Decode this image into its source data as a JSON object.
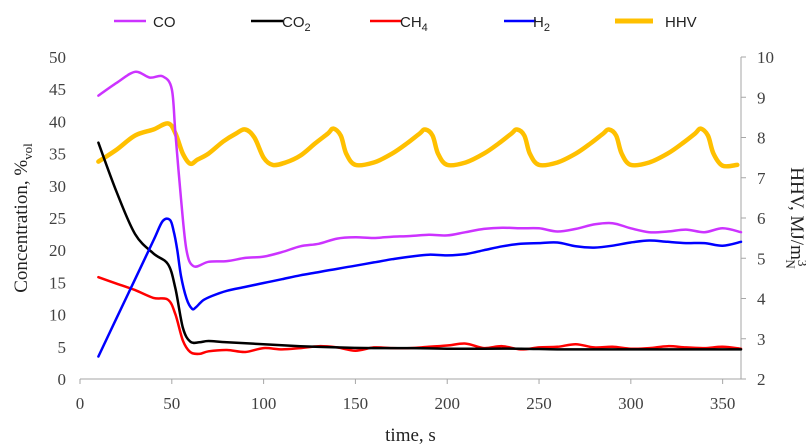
{
  "chart_data": {
    "type": "line",
    "xlabel": "time, s",
    "ylabel_left": {
      "base": "Concentration, %",
      "sub": "vol"
    },
    "ylabel_right": {
      "base": "HHV, MJ/m",
      "sup": "3",
      "sub": "N"
    },
    "xlim": [
      0,
      360
    ],
    "ylim_left": [
      0,
      50
    ],
    "ylim_right": [
      2,
      10
    ],
    "xticks": [
      "0",
      "50",
      "100",
      "150",
      "200",
      "250",
      "300",
      "350"
    ],
    "yticks_left": [
      "0",
      "5",
      "10",
      "15",
      "20",
      "25",
      "30",
      "35",
      "40",
      "45",
      "50"
    ],
    "yticks_right": [
      "2",
      "3",
      "4",
      "5",
      "6",
      "7",
      "8",
      "9",
      "10"
    ],
    "grid": false,
    "legend_position": "top",
    "series": [
      {
        "name": "CO",
        "sub": "",
        "color": "#cc33ff",
        "axis": "left",
        "x": [
          10,
          20,
          30,
          38,
          45,
          50,
          52,
          55,
          58,
          62,
          70,
          80,
          90,
          100,
          110,
          120,
          130,
          140,
          150,
          160,
          170,
          180,
          190,
          200,
          210,
          220,
          230,
          240,
          250,
          260,
          270,
          280,
          290,
          300,
          310,
          320,
          330,
          340,
          350,
          360
        ],
        "y": [
          44,
          46,
          47.7,
          46.8,
          47,
          45,
          38,
          28,
          20,
          17.5,
          18.2,
          18.3,
          18.8,
          19,
          19.7,
          20.6,
          21,
          21.8,
          22,
          21.9,
          22.1,
          22.2,
          22.4,
          22.3,
          22.8,
          23.3,
          23.5,
          23.4,
          23.4,
          22.9,
          23.3,
          24,
          24.2,
          23.4,
          22.8,
          22.9,
          23.2,
          22.8,
          23.4,
          22.8
        ]
      },
      {
        "name": "CO",
        "sub": "2",
        "color": "#000000",
        "axis": "left",
        "x": [
          10,
          20,
          30,
          40,
          48,
          52,
          56,
          60,
          65,
          70,
          80,
          100,
          120,
          140,
          160,
          180,
          200,
          220,
          240,
          260,
          280,
          300,
          320,
          340,
          360
        ],
        "y": [
          36.7,
          29,
          22.5,
          19.5,
          17.8,
          14,
          8,
          5.8,
          5.7,
          5.9,
          5.7,
          5.4,
          5.1,
          4.9,
          4.8,
          4.8,
          4.7,
          4.7,
          4.7,
          4.6,
          4.6,
          4.6,
          4.6,
          4.6,
          4.6
        ]
      },
      {
        "name": "CH",
        "sub": "4",
        "color": "#ff0000",
        "axis": "left",
        "x": [
          10,
          20,
          30,
          40,
          48,
          52,
          56,
          60,
          65,
          70,
          80,
          90,
          100,
          110,
          120,
          130,
          140,
          150,
          160,
          170,
          180,
          190,
          200,
          210,
          220,
          230,
          240,
          250,
          260,
          270,
          280,
          290,
          300,
          310,
          320,
          330,
          340,
          350,
          360
        ],
        "y": [
          15.8,
          14.8,
          13.8,
          12.6,
          12.3,
          10,
          6,
          4.2,
          3.9,
          4.3,
          4.5,
          4.2,
          4.8,
          4.6,
          4.8,
          5.1,
          4.9,
          4.4,
          4.9,
          4.8,
          4.8,
          5,
          5.2,
          5.5,
          4.8,
          5.1,
          4.6,
          4.9,
          5,
          5.4,
          4.9,
          5,
          4.7,
          4.8,
          5.1,
          4.9,
          4.8,
          5,
          4.7
        ]
      },
      {
        "name": "H",
        "sub": "2",
        "color": "#0000ff",
        "axis": "left",
        "x": [
          10,
          20,
          30,
          40,
          45,
          49,
          51,
          53,
          55,
          58,
          61,
          63,
          67,
          72,
          80,
          90,
          100,
          110,
          120,
          130,
          140,
          150,
          160,
          170,
          180,
          190,
          200,
          210,
          220,
          230,
          240,
          250,
          260,
          270,
          280,
          290,
          300,
          310,
          320,
          330,
          340,
          350,
          360
        ],
        "y": [
          3.5,
          9.5,
          15.5,
          21.5,
          24.5,
          24.7,
          23,
          20,
          16,
          12.5,
          10.9,
          11.1,
          12.2,
          12.9,
          13.7,
          14.3,
          14.9,
          15.5,
          16.1,
          16.6,
          17.1,
          17.6,
          18.1,
          18.6,
          19,
          19.3,
          19.2,
          19.4,
          20,
          20.6,
          21,
          21.1,
          21.2,
          20.6,
          20.4,
          20.7,
          21.2,
          21.5,
          21.3,
          21.1,
          21.1,
          20.7,
          21.3
        ]
      },
      {
        "name": "HHV",
        "sub": "",
        "color": "#ffc000",
        "axis": "right",
        "x": [
          10,
          20,
          30,
          40,
          48,
          52,
          56,
          60,
          64,
          70,
          78,
          85,
          90,
          95,
          100,
          105,
          112,
          120,
          128,
          135,
          138,
          142,
          145,
          150,
          160,
          170,
          178,
          185,
          188,
          192,
          195,
          200,
          210,
          220,
          228,
          235,
          238,
          242,
          245,
          250,
          260,
          270,
          278,
          285,
          288,
          292,
          295,
          300,
          310,
          320,
          328,
          335,
          338,
          342,
          345,
          350,
          358
        ],
        "y": [
          7.4,
          7.7,
          8.05,
          8.2,
          8.35,
          8.1,
          7.6,
          7.35,
          7.45,
          7.6,
          7.9,
          8.1,
          8.2,
          8.0,
          7.5,
          7.32,
          7.38,
          7.55,
          7.85,
          8.1,
          8.22,
          8.05,
          7.6,
          7.32,
          7.38,
          7.6,
          7.85,
          8.1,
          8.2,
          8.05,
          7.6,
          7.32,
          7.38,
          7.6,
          7.85,
          8.1,
          8.2,
          8.05,
          7.6,
          7.32,
          7.38,
          7.6,
          7.85,
          8.1,
          8.2,
          8.05,
          7.6,
          7.32,
          7.38,
          7.6,
          7.85,
          8.1,
          8.22,
          8.05,
          7.6,
          7.3,
          7.32
        ]
      }
    ]
  }
}
